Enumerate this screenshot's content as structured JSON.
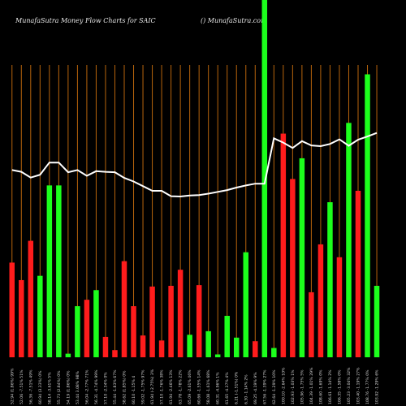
{
  "header": {
    "title": "MunafaSutra  Money Flow  Charts for SAIC",
    "site": "() MunafaSutra.com"
  },
  "chart_data": {
    "type": "bar",
    "title": "MunafaSutra  Money Flow  Charts for SAIC",
    "ylim": [
      0,
      100
    ],
    "colors": {
      "up": "#1cff1c",
      "down": "#ff1c1c",
      "grid": "#b8650c",
      "line": "#ffffff",
      "background": "#000000"
    },
    "bars": [
      {
        "color": "down",
        "value": 26.5
      },
      {
        "color": "down",
        "value": 21.6
      },
      {
        "color": "down",
        "value": 32.6
      },
      {
        "color": "up",
        "value": 22.8
      },
      {
        "color": "up",
        "value": 48.1
      },
      {
        "color": "up",
        "value": 48.1
      },
      {
        "color": "up",
        "value": 1.0
      },
      {
        "color": "up",
        "value": 14.3
      },
      {
        "color": "down",
        "value": 16.1
      },
      {
        "color": "up",
        "value": 18.8
      },
      {
        "color": "down",
        "value": 5.7
      },
      {
        "color": "down",
        "value": 2.0
      },
      {
        "color": "down",
        "value": 26.9
      },
      {
        "color": "down",
        "value": 14.3
      },
      {
        "color": "down",
        "value": 6.1
      },
      {
        "color": "down",
        "value": 19.8
      },
      {
        "color": "down",
        "value": 4.7
      },
      {
        "color": "down",
        "value": 20.0
      },
      {
        "color": "down",
        "value": 24.5
      },
      {
        "color": "up",
        "value": 6.3
      },
      {
        "color": "down",
        "value": 20.2
      },
      {
        "color": "up",
        "value": 7.3
      },
      {
        "color": "up",
        "value": 0.8
      },
      {
        "color": "up",
        "value": 11.6
      },
      {
        "color": "up",
        "value": 5.5
      },
      {
        "color": "up",
        "value": 29.4
      },
      {
        "color": "down",
        "value": 4.5
      },
      {
        "color": "up",
        "value": 100
      },
      {
        "color": "up",
        "value": 2.6
      },
      {
        "color": "down",
        "value": 62.6
      },
      {
        "color": "down",
        "value": 49.9
      },
      {
        "color": "up",
        "value": 55.7
      },
      {
        "color": "down",
        "value": 18.2
      },
      {
        "color": "down",
        "value": 31.6
      },
      {
        "color": "up",
        "value": 43.4
      },
      {
        "color": "down",
        "value": 28.0
      },
      {
        "color": "up",
        "value": 65.6
      },
      {
        "color": "down",
        "value": 46.6
      },
      {
        "color": "up",
        "value": 79.2
      },
      {
        "color": "up",
        "value": 20.0
      }
    ],
    "line": [
      52.4,
      51.9,
      50.3,
      51.1,
      54.5,
      54.5,
      51.8,
      52.4,
      50.8,
      52.1,
      51.9,
      51.8,
      50.2,
      49.2,
      47.9,
      46.6,
      46.6,
      45.1,
      45.0,
      45.3,
      45.4,
      45.8,
      46.3,
      46.8,
      47.5,
      48.1,
      48.6,
      48.6,
      61.3,
      60.1,
      58.6,
      60.5,
      59.3,
      59.1,
      59.7,
      61.0,
      59.2,
      60.9,
      61.8,
      62.8
    ],
    "xlabels": [
      "52.94 (1.86%) 99%",
      "52.06 -7.51% 51%",
      "56.36 -7.51% 49%",
      "60.94 (3.33%) 0%",
      "58.14 -3.61% 5%",
      "55.73 (2.84%) 0%",
      "54.19 (1.86%) 0%",
      "53.44 3.08% 98%",
      "56.04 -2.77% 71%",
      "56.31 -4.74% 99%",
      "57.10 -2.34% 0%",
      "55.44 -1.83% 67%",
      "58.62 (1.85%) 0%",
      "60.10 -1.15% 4",
      "59.02 -1.75% 97%",
      "61.94 (-2.75%) 3%",
      "57.10 -1.76% 38%",
      "61.94 -2.46% 13%",
      "63.78 -1.78% 22%",
      "65.09 -2.61% 46%",
      "60.66 -1.55% 14%",
      "58.08 -1.61% 68%",
      "60.31 -4.96% 1%",
      "61.65 -4.37% 4%",
      "6.21 (-1.51%) 0%",
      "6.30 -1.14% 2%",
      "69.25 -4.19% 9%",
      "67.56 -1.39% 27%",
      "62.64 -1.29% 10%",
      "100.10 -2.64% 10%",
      "102.93 -1.03% 1%",
      "105.96 -1.75% 5%",
      "104.39 -1.01% 29%",
      "108.60 -1.69% 0%",
      "106.61 -1.14% 2%",
      "106.35 -1.58% 0%",
      "105.23 -3.04% 32%",
      "103.40 -1.19% 27%",
      "108.76 -1.77% 0%",
      "103.92 -1.29% 6%"
    ]
  }
}
